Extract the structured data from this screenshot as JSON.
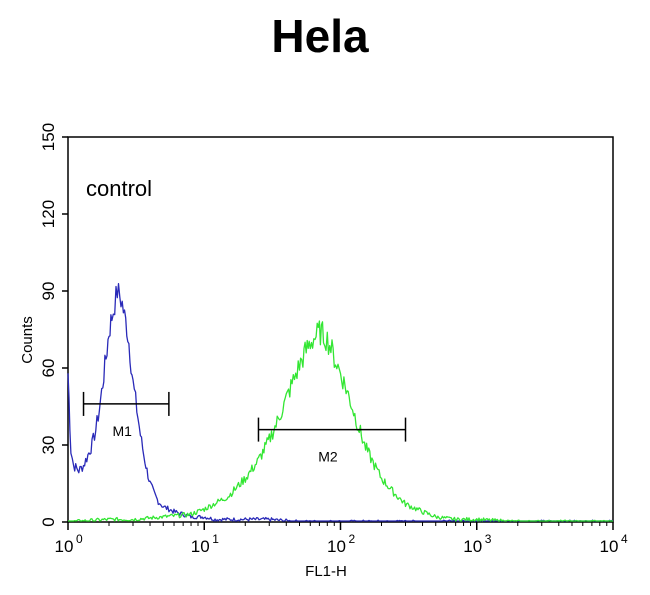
{
  "chart_data": {
    "type": "line",
    "title": "Hela",
    "xlabel": "FL1-H",
    "ylabel": "Counts",
    "xscale": "log",
    "xlim": [
      1,
      10000
    ],
    "ylim": [
      0,
      150
    ],
    "x_ticks": [
      {
        "base": "10",
        "exp": "0",
        "value": 1
      },
      {
        "base": "10",
        "exp": "1",
        "value": 10
      },
      {
        "base": "10",
        "exp": "2",
        "value": 100
      },
      {
        "base": "10",
        "exp": "3",
        "value": 1000
      },
      {
        "base": "10",
        "exp": "4",
        "value": 10000
      }
    ],
    "y_ticks": [
      "0",
      "30",
      "60",
      "90",
      "120",
      "150"
    ],
    "annotation": "control",
    "series": [
      {
        "color": "#2a2ab8",
        "x": [
          1,
          1.05,
          1.1,
          1.2,
          1.3,
          1.4,
          1.5,
          1.6,
          1.7,
          1.8,
          1.9,
          2.0,
          2.1,
          2.2,
          2.3,
          2.4,
          2.5,
          2.6,
          2.7,
          2.8,
          2.9,
          3.0,
          3.2,
          3.4,
          3.6,
          3.8,
          4.0,
          4.3,
          4.6,
          5.0,
          5.5,
          6,
          7,
          8,
          10,
          12,
          15,
          20,
          30,
          50,
          80,
          100,
          200,
          500,
          1000,
          10000
        ],
        "values": [
          58,
          28,
          22,
          20,
          22,
          26,
          30,
          36,
          44,
          54,
          64,
          74,
          80,
          85,
          90,
          88,
          85,
          80,
          76,
          70,
          62,
          54,
          44,
          34,
          26,
          20,
          15,
          11,
          8,
          6,
          5,
          4,
          3,
          2,
          2,
          1,
          1,
          1,
          1,
          0,
          0,
          0,
          0,
          0,
          0,
          0
        ]
      },
      {
        "color": "#33e633",
        "x": [
          1,
          2,
          3,
          5,
          8,
          10,
          15,
          20,
          25,
          30,
          35,
          40,
          45,
          50,
          55,
          60,
          65,
          70,
          75,
          80,
          85,
          90,
          100,
          110,
          120,
          130,
          140,
          150,
          170,
          200,
          250,
          300,
          400,
          500,
          700,
          1000,
          2000,
          5000,
          10000
        ],
        "values": [
          0,
          1,
          1,
          2,
          3,
          5,
          10,
          17,
          24,
          32,
          40,
          48,
          55,
          61,
          66,
          70,
          72,
          74,
          73,
          71,
          68,
          64,
          58,
          52,
          46,
          40,
          35,
          30,
          24,
          17,
          11,
          7,
          4,
          2,
          1,
          1,
          0,
          0,
          0
        ]
      }
    ],
    "markers": [
      {
        "label": "M1",
        "x_start": 1.3,
        "x_end": 5.5,
        "y": 46
      },
      {
        "label": "M2",
        "x_start": 25,
        "x_end": 300,
        "y": 36
      }
    ]
  }
}
